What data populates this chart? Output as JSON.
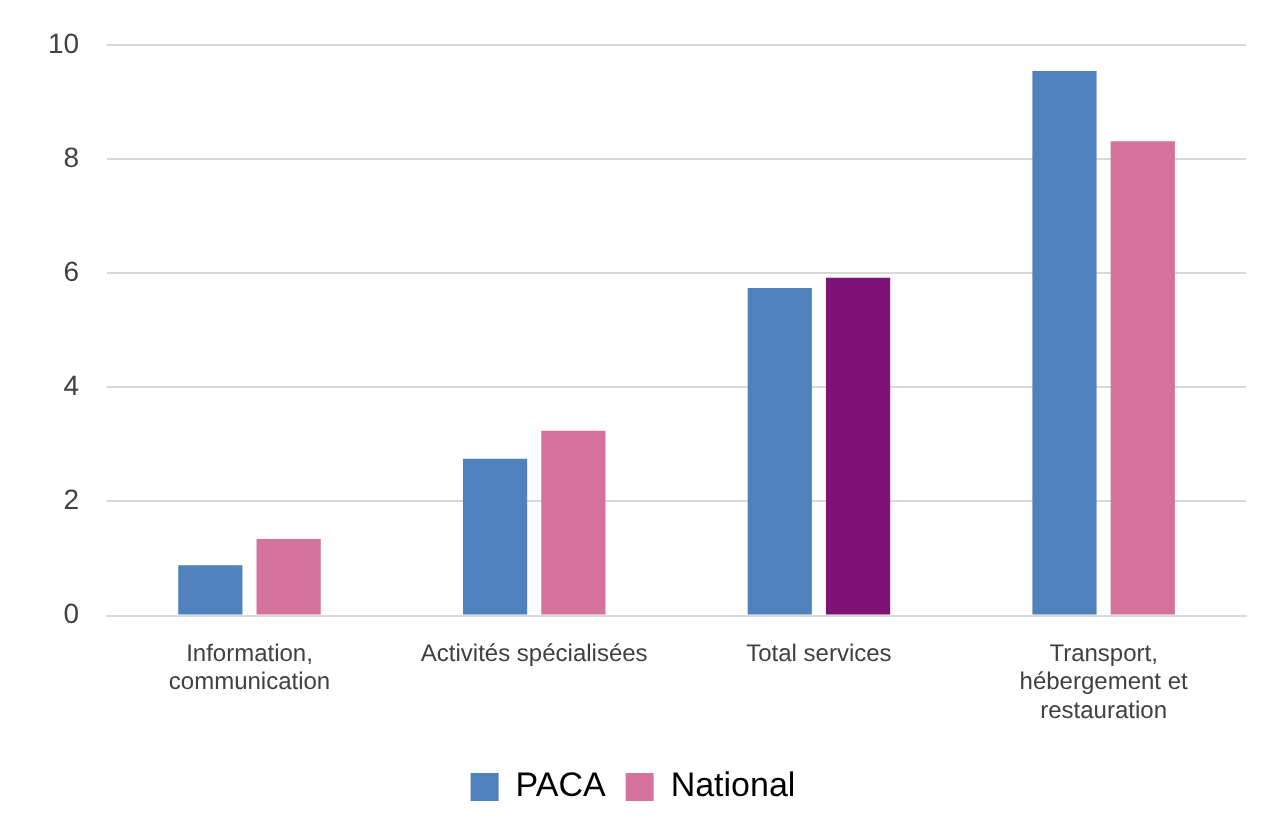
{
  "chart_data": {
    "type": "bar",
    "categories": [
      "Information, communication",
      "Activités spécialisées",
      "Total services",
      "Transport, hébergement et restauration"
    ],
    "series": [
      {
        "name": "PACA",
        "color": "#4f81bd",
        "values": [
          0.88,
          2.75,
          5.74,
          9.54
        ]
      },
      {
        "name": "National",
        "color": "#d4739a",
        "colors": [
          "#d4739a",
          "#d4739a",
          "#7f1275",
          "#d4739a"
        ],
        "values": [
          1.34,
          3.24,
          5.92,
          8.31
        ]
      }
    ],
    "ylim": [
      0,
      10
    ],
    "yticks": [
      0,
      2,
      4,
      6,
      8,
      10
    ],
    "grid": "y",
    "legend": "bottom"
  }
}
